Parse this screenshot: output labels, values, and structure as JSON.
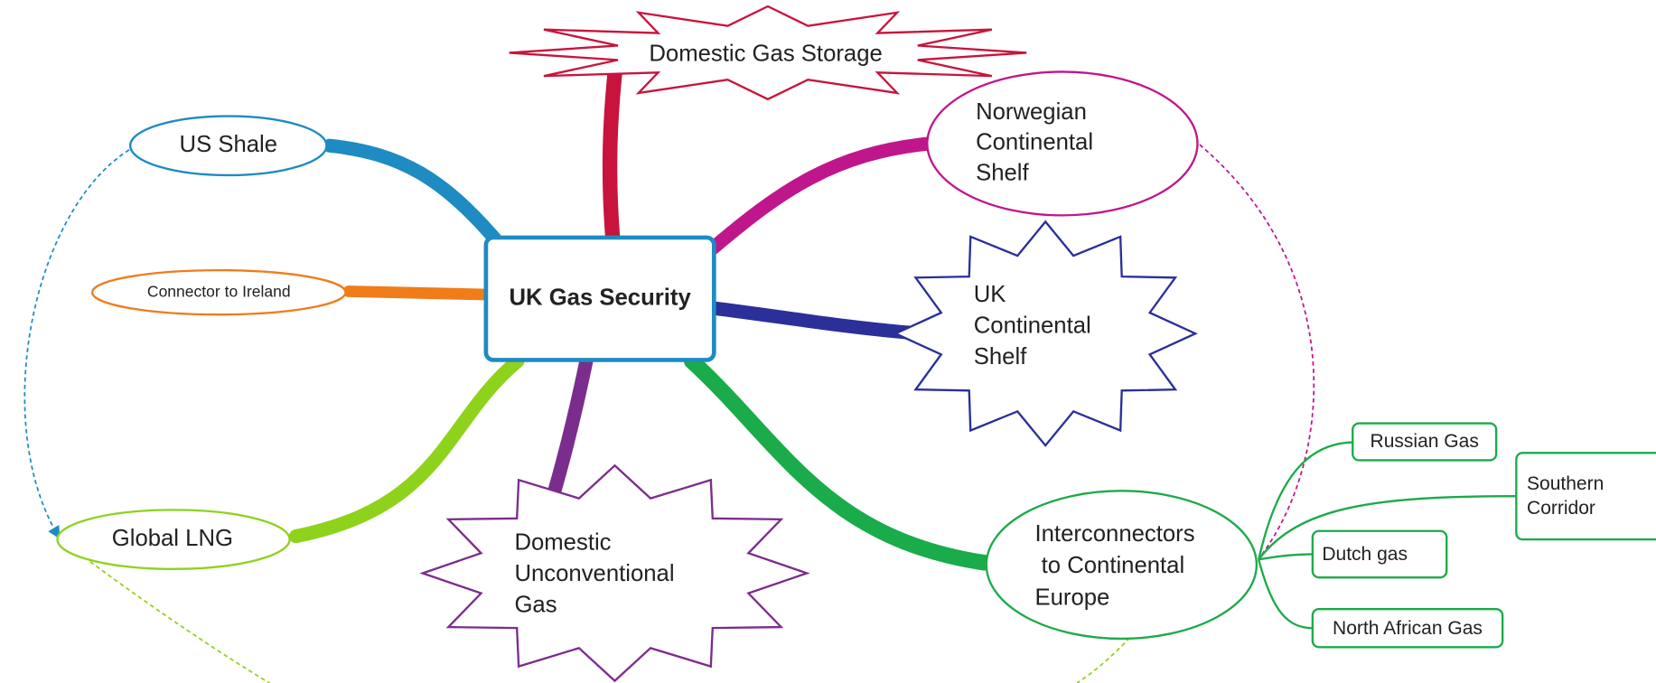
{
  "center": {
    "label": "UK Gas Security"
  },
  "nodes": [
    {
      "label": [
        "Domestic Gas Storage"
      ]
    },
    {
      "label": [
        "US Shale"
      ]
    },
    {
      "label": [
        "Norwegian",
        "Continental",
        "Shelf"
      ]
    },
    {
      "label": [
        "Connector to Ireland"
      ]
    },
    {
      "label": [
        "UK",
        "Continental",
        "Shelf"
      ]
    },
    {
      "label": [
        "Global LNG"
      ]
    },
    {
      "label": [
        "Domestic",
        "Unconventional",
        "Gas"
      ]
    },
    {
      "label": [
        "Interconnectors",
        " to Continental",
        "Europe"
      ]
    }
  ],
  "sub_nodes": [
    {
      "label": [
        "Russian Gas"
      ]
    },
    {
      "label": [
        "Southern",
        "Corridor"
      ]
    },
    {
      "label": [
        "Dutch gas"
      ]
    },
    {
      "label": [
        "North African Gas"
      ]
    }
  ]
}
